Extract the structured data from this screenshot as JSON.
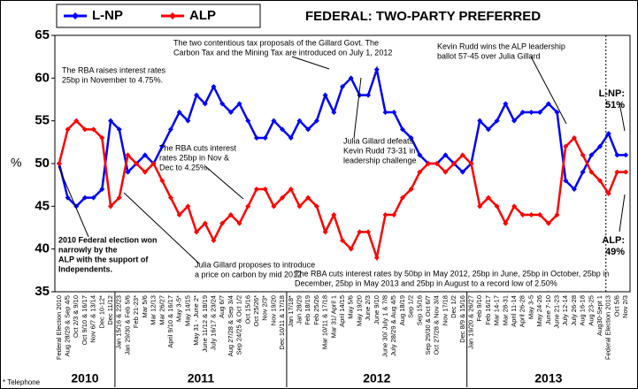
{
  "chart_data": {
    "type": "line",
    "title": "FEDERAL: TWO-PARTY PREFERRED",
    "y_label": "%",
    "footnote": "* Telephone",
    "year_labels": [
      "2010",
      "2011",
      "2012",
      "2013"
    ],
    "categories": [
      "Federal Election 2010",
      "Aug 28/29 & Sep 4/5",
      "Oct 2/3 & 9/10",
      "Oct 9/10 & 16/17",
      "Nov 6/7 & 13/14",
      "Dec 10-12*",
      "Dec 11/12",
      "Jan 15/16 & 22/23",
      "Jan 29/30 & Feb 5/6",
      "Feb 21-23*",
      "Mar 5/6",
      "Mar 12/13",
      "Mar 26/27",
      "April 9/10 & 16/17",
      "May 3-5*",
      "May 14/15",
      "May 31 - June 2*",
      "June 11/12 & 18/19",
      "July 16/17 & 23/24",
      "Aug 6/7",
      "Aug 27/28 & Sep 3/4",
      "Sep 24/25 & Oct 1/2",
      "Oct 15/16",
      "Oct 25/26*",
      "Nov 2/3*",
      "Nov 19/20",
      "Dec 10/11 & 17/18",
      "Jan 17/18*",
      "Jan 28/29",
      "Feb 18/19",
      "Feb 25/26",
      "Mar 10/11 & 17/18",
      "Mar 31/ April 1",
      "April 14/15",
      "May 5/6",
      "May 19/20",
      "June 2/3",
      "June 9/10",
      "June 30/ July 1 & 7/8",
      "July 28/29 & Aug 4/5",
      "Aug 18/19",
      "Sep 1/2",
      "Sep 15/16",
      "Sep 29/30 & Oct 6/7",
      "Oct 27/28 & Nov 3/4",
      "Nov 17/18",
      "Dec 1/2",
      "Dec 8/9 & 15/16",
      "Jan 19/20 & 26/27",
      "Feb 9/10",
      "Feb 16/17",
      "Mar 14-17",
      "Mar 28-31",
      "April 11-14",
      "April 26-28",
      "May 3-5",
      "May 24-26",
      "June 7-10",
      "June 21-23",
      "July 12-14",
      "July 26-28",
      "Aug 16-18",
      "Aug 23-25",
      "Aug30-Sept 1",
      "Federal Election 2013",
      "Oct 5/6",
      "Nov 2/3"
    ],
    "series": [
      {
        "name": "L-NP",
        "color": "#0000ff",
        "values": [
          50,
          46,
          45,
          46,
          46,
          47,
          55,
          54,
          49,
          50,
          51,
          50,
          52,
          54,
          56,
          55,
          58,
          57,
          59,
          57,
          56,
          57,
          55,
          53,
          53,
          55,
          54,
          53,
          55,
          54,
          55,
          58,
          56,
          59,
          60,
          58,
          58,
          61,
          56,
          56,
          54,
          53,
          51,
          50,
          50,
          51,
          50,
          49,
          50,
          55,
          54,
          55,
          57,
          55,
          56,
          56,
          56,
          57,
          56,
          48,
          47,
          49,
          51,
          52,
          53.5,
          51,
          51
        ]
      },
      {
        "name": "ALP",
        "color": "#ff0000",
        "values": [
          50,
          54,
          55,
          54,
          54,
          53,
          45,
          46,
          51,
          50,
          49,
          50,
          48,
          46,
          44,
          45,
          42,
          43,
          41,
          43,
          44,
          43,
          45,
          47,
          47,
          45,
          46,
          47,
          45,
          46,
          45,
          42,
          44,
          41,
          40,
          42,
          42,
          39,
          44,
          44,
          46,
          47,
          49,
          50,
          50,
          49,
          50,
          51,
          50,
          45,
          46,
          45,
          43,
          45,
          44,
          44,
          44,
          43,
          44,
          52,
          53,
          51,
          49,
          48,
          46.5,
          49,
          49
        ]
      }
    ],
    "ylim": [
      35,
      65
    ],
    "yticks": [
      35,
      40,
      45,
      50,
      55,
      60,
      65
    ],
    "annotations": [
      {
        "lines": [
          "The RBA raises interest rates",
          "25bp in November to 4.75%."
        ]
      },
      {
        "lines": [
          "2010 Federal election won",
          "narrowly by the",
          "ALP with the support of",
          "Independents."
        ]
      },
      {
        "lines": [
          "Julia Gillard proposes to introduce",
          "a price on carbon by mid 2012"
        ]
      },
      {
        "lines": [
          "The RBA cuts interest",
          "rates 25bp in Nov &",
          "Dec to 4.25%."
        ]
      },
      {
        "lines": [
          "The two contentious tax proposals of the Gillard Govt. The",
          "Carbon Tax and the Mining Tax are introduced on July 1, 2012"
        ]
      },
      {
        "lines": [
          "Julia Gillard defeats",
          "Kevin Rudd 73-31 in",
          "leadership challenge"
        ]
      },
      {
        "lines": [
          "The RBA cuts interest rates by 50bp in May 2012, 25bp in June, 25bp in October, 25bp in",
          "December, 25bp in May 2013 and 25bp in August to a record low of 2.50%"
        ]
      },
      {
        "lines": [
          "Kevin Rudd wins the ALP leadership",
          "ballot 57-45 over Julia Gillard"
        ]
      },
      {
        "lines": [
          "L-NP:",
          "51%"
        ]
      },
      {
        "lines": [
          "ALP:",
          "49%"
        ]
      }
    ]
  }
}
